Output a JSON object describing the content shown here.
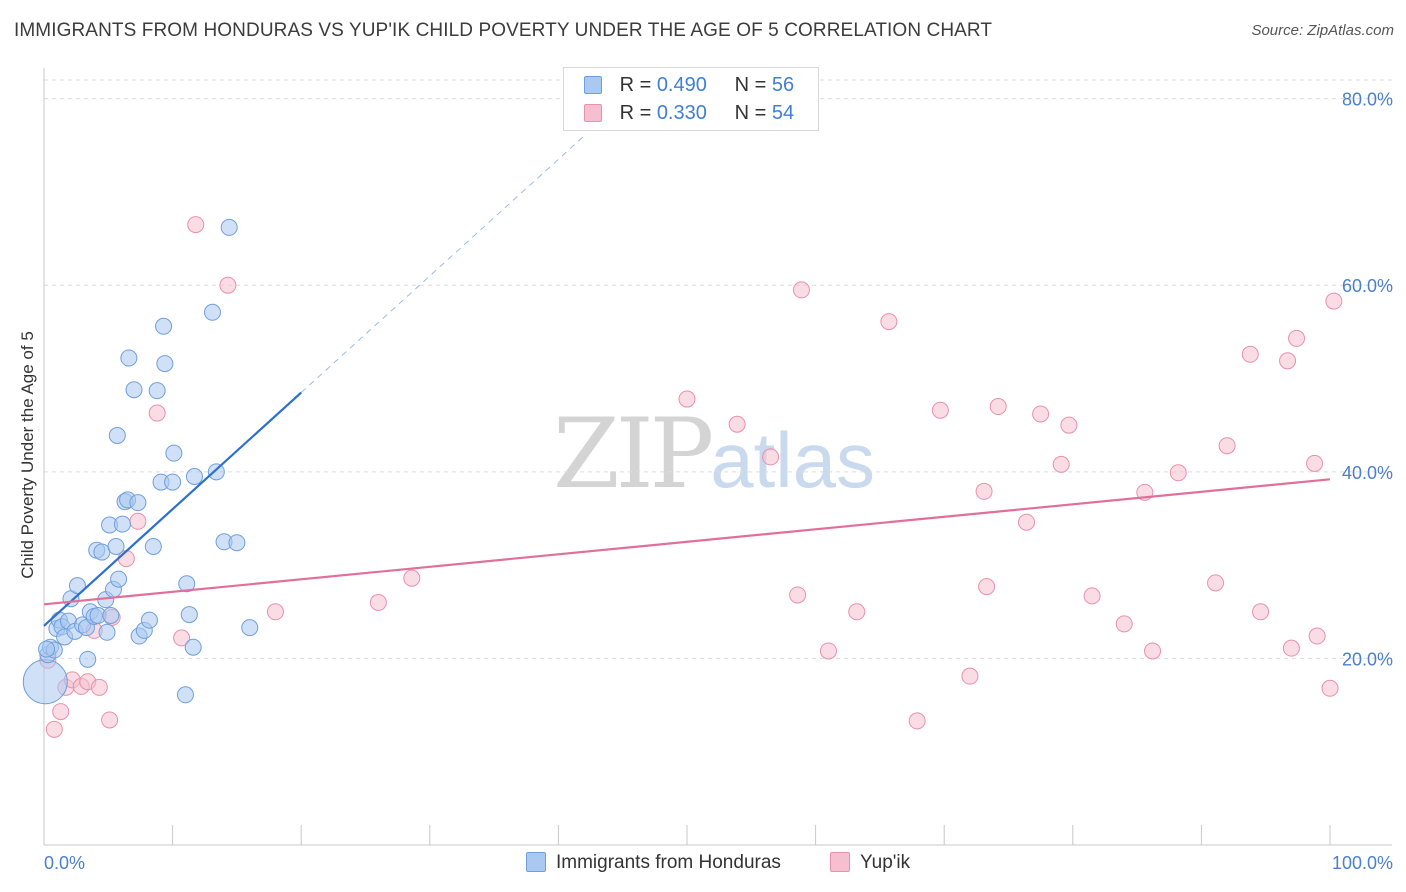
{
  "title": "IMMIGRANTS FROM HONDURAS VS YUP'IK CHILD POVERTY UNDER THE AGE OF 5 CORRELATION CHART",
  "source": "Source: ZipAtlas.com",
  "watermark": {
    "zip": "ZIP",
    "atlas": "atlas"
  },
  "legend": {
    "rows": [
      {
        "r_label": "R =",
        "r_value": "0.490",
        "n_label": "N =",
        "n_value": "56"
      },
      {
        "r_label": "R =",
        "r_value": "0.330",
        "n_label": "N =",
        "n_value": "54"
      }
    ]
  },
  "colors": {
    "blue_fill": "#aac8f0",
    "blue_stroke": "#6f9fdc",
    "blue_line": "#2b6fcf",
    "pink_fill": "#f6bfd0",
    "pink_stroke": "#e890ad",
    "pink_line": "#e0709a",
    "tick_label": "#4a7fd0",
    "grid": "#dcdcdc"
  },
  "chart_data": {
    "type": "scatter",
    "title": "IMMIGRANTS FROM HONDURAS VS YUP'IK CHILD POVERTY UNDER THE AGE OF 5 CORRELATION CHART",
    "xlabel": "",
    "ylabel": "Child Poverty Under the Age of 5",
    "xlim": [
      0,
      100
    ],
    "ylim": [
      0,
      82
    ],
    "x_tick_labels": [
      "0.0%",
      "100.0%"
    ],
    "y_ticks": [
      20,
      40,
      60,
      80
    ],
    "y_tick_labels": [
      "20.0%",
      "40.0%",
      "60.0%",
      "80.0%"
    ],
    "grid": true,
    "legend_position": "bottom",
    "series": [
      {
        "name": "Immigrants from Honduras",
        "color": "#aac8f0",
        "trend": {
          "x0": 0,
          "y0": 23.5,
          "x1": 20,
          "y1": 48.5,
          "dashed_to_x": 42,
          "dashed_to_y": 76
        },
        "points": [
          [
            0.1,
            17.5
          ],
          [
            0.3,
            20.4
          ],
          [
            0.5,
            21.2
          ],
          [
            0.8,
            20.9
          ],
          [
            1.0,
            23.2
          ],
          [
            1.2,
            24.1
          ],
          [
            1.4,
            23.4
          ],
          [
            1.6,
            22.3
          ],
          [
            1.9,
            24.0
          ],
          [
            2.1,
            26.4
          ],
          [
            2.4,
            22.9
          ],
          [
            2.6,
            27.8
          ],
          [
            3.0,
            23.6
          ],
          [
            3.3,
            23.3
          ],
          [
            3.6,
            25.0
          ],
          [
            3.4,
            19.9
          ],
          [
            3.9,
            24.5
          ],
          [
            4.2,
            24.6
          ],
          [
            4.1,
            31.6
          ],
          [
            4.5,
            31.4
          ],
          [
            4.8,
            26.3
          ],
          [
            4.9,
            22.8
          ],
          [
            5.2,
            24.6
          ],
          [
            5.4,
            27.4
          ],
          [
            5.1,
            34.3
          ],
          [
            5.8,
            28.5
          ],
          [
            5.6,
            32.0
          ],
          [
            6.1,
            34.4
          ],
          [
            6.3,
            36.8
          ],
          [
            6.5,
            37.0
          ],
          [
            7.3,
            36.7
          ],
          [
            6.6,
            52.2
          ],
          [
            5.7,
            43.9
          ],
          [
            7.0,
            48.8
          ],
          [
            7.4,
            22.4
          ],
          [
            7.8,
            23.0
          ],
          [
            8.2,
            24.1
          ],
          [
            8.5,
            32.0
          ],
          [
            8.8,
            48.7
          ],
          [
            9.1,
            38.9
          ],
          [
            9.3,
            55.6
          ],
          [
            9.4,
            51.6
          ],
          [
            10.0,
            38.9
          ],
          [
            10.1,
            42.0
          ],
          [
            11.1,
            28.0
          ],
          [
            11.3,
            24.7
          ],
          [
            11.6,
            21.2
          ],
          [
            11.0,
            16.1
          ],
          [
            11.7,
            39.5
          ],
          [
            13.1,
            57.1
          ],
          [
            13.4,
            40.0
          ],
          [
            14.0,
            32.5
          ],
          [
            14.4,
            66.2
          ],
          [
            15.0,
            32.4
          ],
          [
            16.0,
            23.3
          ],
          [
            0.2,
            21.0
          ]
        ]
      },
      {
        "name": "Yup'ik",
        "color": "#f6bfd0",
        "trend": {
          "x0": 0,
          "y0": 25.8,
          "x1": 100,
          "y1": 39.2
        },
        "points": [
          [
            0.3,
            19.8
          ],
          [
            0.8,
            12.4
          ],
          [
            1.3,
            14.3
          ],
          [
            1.7,
            16.9
          ],
          [
            2.2,
            17.7
          ],
          [
            2.9,
            17.0
          ],
          [
            3.4,
            17.5
          ],
          [
            3.9,
            23.0
          ],
          [
            4.3,
            16.9
          ],
          [
            5.1,
            13.4
          ],
          [
            5.3,
            24.4
          ],
          [
            6.4,
            30.7
          ],
          [
            7.3,
            34.7
          ],
          [
            8.8,
            46.3
          ],
          [
            10.7,
            22.2
          ],
          [
            11.8,
            66.5
          ],
          [
            14.3,
            60.0
          ],
          [
            18.0,
            25.0
          ],
          [
            26.0,
            26.0
          ],
          [
            28.6,
            28.6
          ],
          [
            50.0,
            47.8
          ],
          [
            53.9,
            45.1
          ],
          [
            56.5,
            41.6
          ],
          [
            58.6,
            26.8
          ],
          [
            58.9,
            59.5
          ],
          [
            61.0,
            20.8
          ],
          [
            63.2,
            25.0
          ],
          [
            65.7,
            56.1
          ],
          [
            67.9,
            13.3
          ],
          [
            69.7,
            46.6
          ],
          [
            72.0,
            18.1
          ],
          [
            73.1,
            37.9
          ],
          [
            73.3,
            27.7
          ],
          [
            74.2,
            47.0
          ],
          [
            76.4,
            34.6
          ],
          [
            77.5,
            46.2
          ],
          [
            79.1,
            40.8
          ],
          [
            79.7,
            45.0
          ],
          [
            81.5,
            26.7
          ],
          [
            84.0,
            23.7
          ],
          [
            85.6,
            37.8
          ],
          [
            86.2,
            20.8
          ],
          [
            88.2,
            39.9
          ],
          [
            91.1,
            28.1
          ],
          [
            92.0,
            42.8
          ],
          [
            93.8,
            52.6
          ],
          [
            94.6,
            25.0
          ],
          [
            96.7,
            51.9
          ],
          [
            97.0,
            21.1
          ],
          [
            97.4,
            54.3
          ],
          [
            98.8,
            40.9
          ],
          [
            99.0,
            22.4
          ],
          [
            100.0,
            16.8
          ],
          [
            100.3,
            58.3
          ]
        ]
      }
    ]
  }
}
